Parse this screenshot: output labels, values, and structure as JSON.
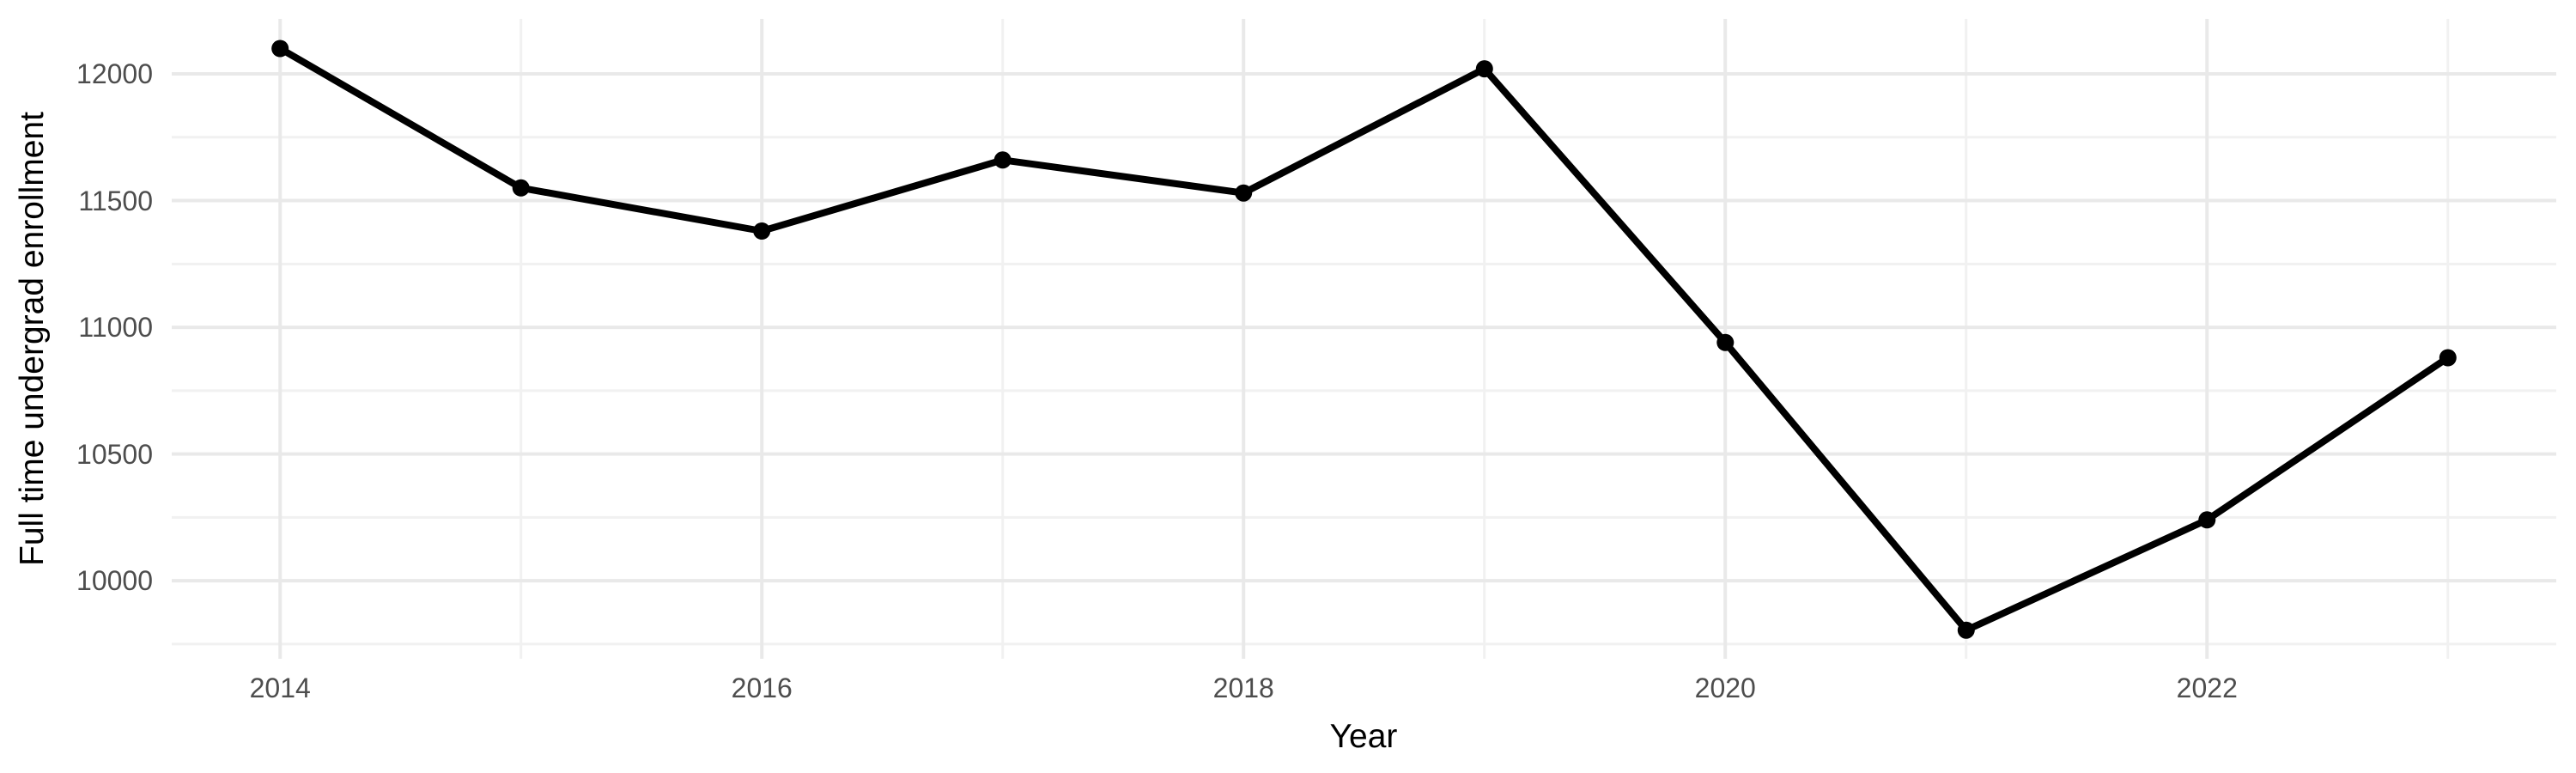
{
  "chart_data": {
    "type": "line",
    "title": "",
    "xlabel": "Year",
    "ylabel": "Full time undergrad enrollment",
    "x": [
      2014,
      2015,
      2016,
      2017,
      2018,
      2019,
      2020,
      2021,
      2022,
      2023
    ],
    "values": [
      12100,
      11550,
      11380,
      11660,
      11530,
      12020,
      10940,
      9805,
      10240,
      10880
    ],
    "x_range": [
      2013.55,
      2023.45
    ],
    "y_range": [
      9692,
      12217
    ],
    "x_ticks": [
      {
        "value": 2014,
        "label": "2014"
      },
      {
        "value": 2016,
        "label": "2016"
      },
      {
        "value": 2018,
        "label": "2018"
      },
      {
        "value": 2020,
        "label": "2020"
      },
      {
        "value": 2022,
        "label": "2022"
      }
    ],
    "y_ticks": [
      {
        "value": 12000,
        "label": "12000"
      },
      {
        "value": 11500,
        "label": "11500"
      },
      {
        "value": 11000,
        "label": "11000"
      },
      {
        "value": 10500,
        "label": "10500"
      },
      {
        "value": 10000,
        "label": "10000"
      }
    ],
    "x_grid": {
      "major": [
        2014,
        2016,
        2018,
        2020,
        2022
      ],
      "minor": [
        2015,
        2017,
        2019,
        2021,
        2023
      ]
    },
    "y_grid": {
      "major": [
        10000,
        10500,
        11000,
        11500,
        12000
      ],
      "minor": [
        9750,
        10250,
        10750,
        11250,
        11750
      ]
    },
    "grid": "on",
    "legend": "none",
    "point_marker": "circle",
    "colors": {
      "line": "#000000",
      "point": "#000000",
      "grid_major": "#e9e9e9",
      "grid_minor": "#f1f1f1",
      "tick_text": "#4d4d4d",
      "axis_title": "#000000",
      "background": "#ffffff"
    }
  }
}
